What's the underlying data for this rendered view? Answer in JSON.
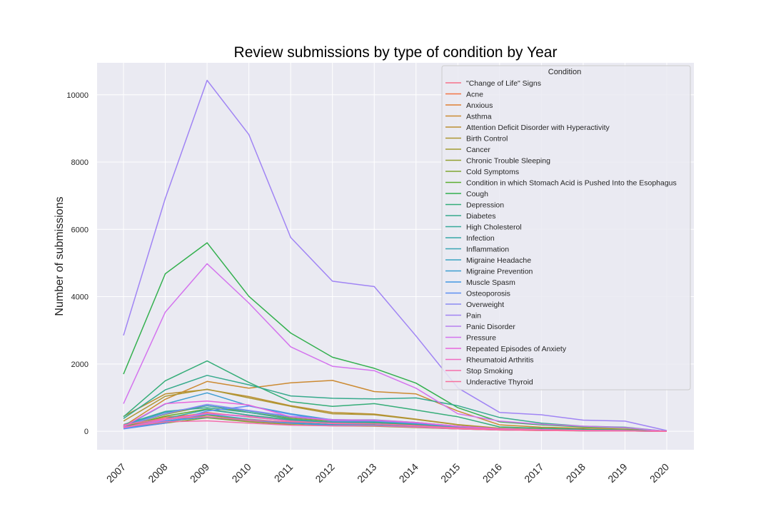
{
  "chart_data": {
    "type": "line",
    "title": "Review submissions by type of condition by Year",
    "xlabel": "",
    "ylabel": "Number of submissions",
    "x": [
      "2007",
      "2008",
      "2009",
      "2010",
      "2011",
      "2012",
      "2013",
      "2014",
      "2015",
      "2016",
      "2017",
      "2018",
      "2019",
      "2020"
    ],
    "ylim": [
      -550,
      10950
    ],
    "yticks": [
      0,
      2000,
      4000,
      6000,
      8000,
      10000
    ],
    "grid": true,
    "legend": {
      "title": "Condition",
      "placement": "top-right"
    },
    "series": [
      {
        "name": "\"Change of Life\" Signs",
        "color": "#f77189",
        "values": [
          120,
          300,
          430,
          300,
          230,
          200,
          180,
          130,
          80,
          40,
          25,
          15,
          10,
          0
        ]
      },
      {
        "name": "Acne",
        "color": "#f37545",
        "values": [
          130,
          420,
          520,
          450,
          320,
          260,
          240,
          200,
          120,
          60,
          40,
          25,
          15,
          0
        ]
      },
      {
        "name": "Anxious",
        "color": "#e07f32",
        "values": [
          100,
          360,
          560,
          420,
          310,
          270,
          250,
          190,
          110,
          55,
          35,
          20,
          15,
          0
        ]
      },
      {
        "name": "Asthma",
        "color": "#cc8a32",
        "values": [
          150,
          950,
          1480,
          1280,
          1440,
          1510,
          1180,
          1110,
          600,
          190,
          120,
          90,
          60,
          0
        ]
      },
      {
        "name": "Attention Deficit Disorder with Hyperactivity",
        "color": "#bb9032",
        "values": [
          440,
          1110,
          1240,
          1030,
          760,
          560,
          510,
          360,
          200,
          90,
          60,
          40,
          25,
          0
        ]
      },
      {
        "name": "Birth Control",
        "color": "#ae9632",
        "values": [
          300,
          1040,
          1250,
          990,
          740,
          520,
          490,
          350,
          190,
          80,
          55,
          35,
          20,
          0
        ]
      },
      {
        "name": "Cancer",
        "color": "#a19b32",
        "values": [
          110,
          260,
          480,
          340,
          240,
          180,
          170,
          120,
          70,
          40,
          25,
          15,
          10,
          0
        ]
      },
      {
        "name": "Chronic Trouble Sleeping",
        "color": "#93a032",
        "values": [
          160,
          500,
          760,
          560,
          390,
          300,
          290,
          220,
          130,
          60,
          40,
          25,
          15,
          0
        ]
      },
      {
        "name": "Cold Symptoms",
        "color": "#80a632",
        "values": [
          90,
          240,
          400,
          280,
          200,
          160,
          150,
          110,
          70,
          35,
          20,
          12,
          8,
          0
        ]
      },
      {
        "name": "Condition in which Stomach Acid is Pushed Into the Esophagus",
        "color": "#5dae31",
        "values": [
          140,
          450,
          660,
          480,
          340,
          260,
          240,
          180,
          100,
          50,
          30,
          20,
          12,
          0
        ]
      },
      {
        "name": "Cough",
        "color": "#33b04e",
        "values": [
          1700,
          4680,
          5600,
          4010,
          2920,
          2200,
          1870,
          1430,
          700,
          280,
          190,
          130,
          100,
          0
        ]
      },
      {
        "name": "Depression",
        "color": "#35ad78",
        "values": [
          430,
          1500,
          2090,
          1450,
          880,
          740,
          820,
          630,
          430,
          130,
          90,
          60,
          40,
          0
        ]
      },
      {
        "name": "Diabetes",
        "color": "#36aa8c",
        "values": [
          380,
          1230,
          1660,
          1380,
          1050,
          980,
          960,
          990,
          760,
          410,
          240,
          150,
          120,
          0
        ]
      },
      {
        "name": "High Cholesterol",
        "color": "#37a99b",
        "values": [
          200,
          590,
          700,
          560,
          360,
          270,
          270,
          210,
          120,
          60,
          40,
          25,
          15,
          0
        ]
      },
      {
        "name": "Infection",
        "color": "#38a7a8",
        "values": [
          110,
          380,
          640,
          480,
          320,
          250,
          230,
          170,
          100,
          50,
          30,
          20,
          12,
          0
        ]
      },
      {
        "name": "Inflammation",
        "color": "#39a5b4",
        "values": [
          80,
          290,
          500,
          360,
          260,
          200,
          190,
          140,
          80,
          40,
          25,
          15,
          10,
          0
        ]
      },
      {
        "name": "Migraine Headache",
        "color": "#3ba3c1",
        "values": [
          170,
          560,
          760,
          600,
          420,
          330,
          310,
          230,
          140,
          70,
          45,
          30,
          20,
          0
        ]
      },
      {
        "name": "Migraine Prevention",
        "color": "#3d9ed0",
        "values": [
          120,
          810,
          1140,
          760,
          520,
          340,
          340,
          260,
          150,
          70,
          45,
          30,
          20,
          0
        ]
      },
      {
        "name": "Muscle Spasm",
        "color": "#4298e2",
        "values": [
          90,
          300,
          420,
          330,
          240,
          180,
          170,
          130,
          80,
          40,
          25,
          15,
          10,
          0
        ]
      },
      {
        "name": "Osteoporosis",
        "color": "#5d8ff3",
        "values": [
          70,
          240,
          600,
          750,
          500,
          300,
          300,
          240,
          140,
          70,
          45,
          30,
          20,
          0
        ]
      },
      {
        "name": "Overweight",
        "color": "#8b89f1",
        "values": [
          150,
          520,
          800,
          620,
          440,
          350,
          320,
          250,
          150,
          70,
          45,
          30,
          20,
          0
        ]
      },
      {
        "name": "Pain",
        "color": "#a084f4",
        "values": [
          2850,
          6920,
          10430,
          8820,
          5760,
          4460,
          4300,
          2830,
          1290,
          560,
          490,
          330,
          300,
          20
        ]
      },
      {
        "name": "Panic Disorder",
        "color": "#b77ff0",
        "values": [
          100,
          330,
          520,
          430,
          300,
          230,
          220,
          160,
          90,
          45,
          30,
          18,
          12,
          0
        ]
      },
      {
        "name": "Pressure",
        "color": "#d474ee",
        "values": [
          820,
          3540,
          4980,
          3810,
          2510,
          1930,
          1800,
          1280,
          520,
          300,
          210,
          150,
          110,
          0
        ]
      },
      {
        "name": "Repeated Episodes of Anxiety",
        "color": "#e866dd",
        "values": [
          140,
          820,
          900,
          780,
          430,
          330,
          330,
          260,
          150,
          70,
          45,
          30,
          20,
          0
        ]
      },
      {
        "name": "Rheumatoid Arthritis",
        "color": "#f06bc1",
        "values": [
          110,
          360,
          540,
          440,
          300,
          230,
          220,
          160,
          100,
          50,
          30,
          20,
          12,
          0
        ]
      },
      {
        "name": "Stop Smoking",
        "color": "#f46eab",
        "values": [
          120,
          280,
          310,
          240,
          180,
          160,
          160,
          120,
          70,
          35,
          20,
          12,
          8,
          0
        ]
      },
      {
        "name": "Underactive Thyroid",
        "color": "#f6709c",
        "values": [
          190,
          380,
          430,
          340,
          280,
          240,
          220,
          170,
          100,
          50,
          30,
          18,
          12,
          0
        ]
      }
    ]
  }
}
